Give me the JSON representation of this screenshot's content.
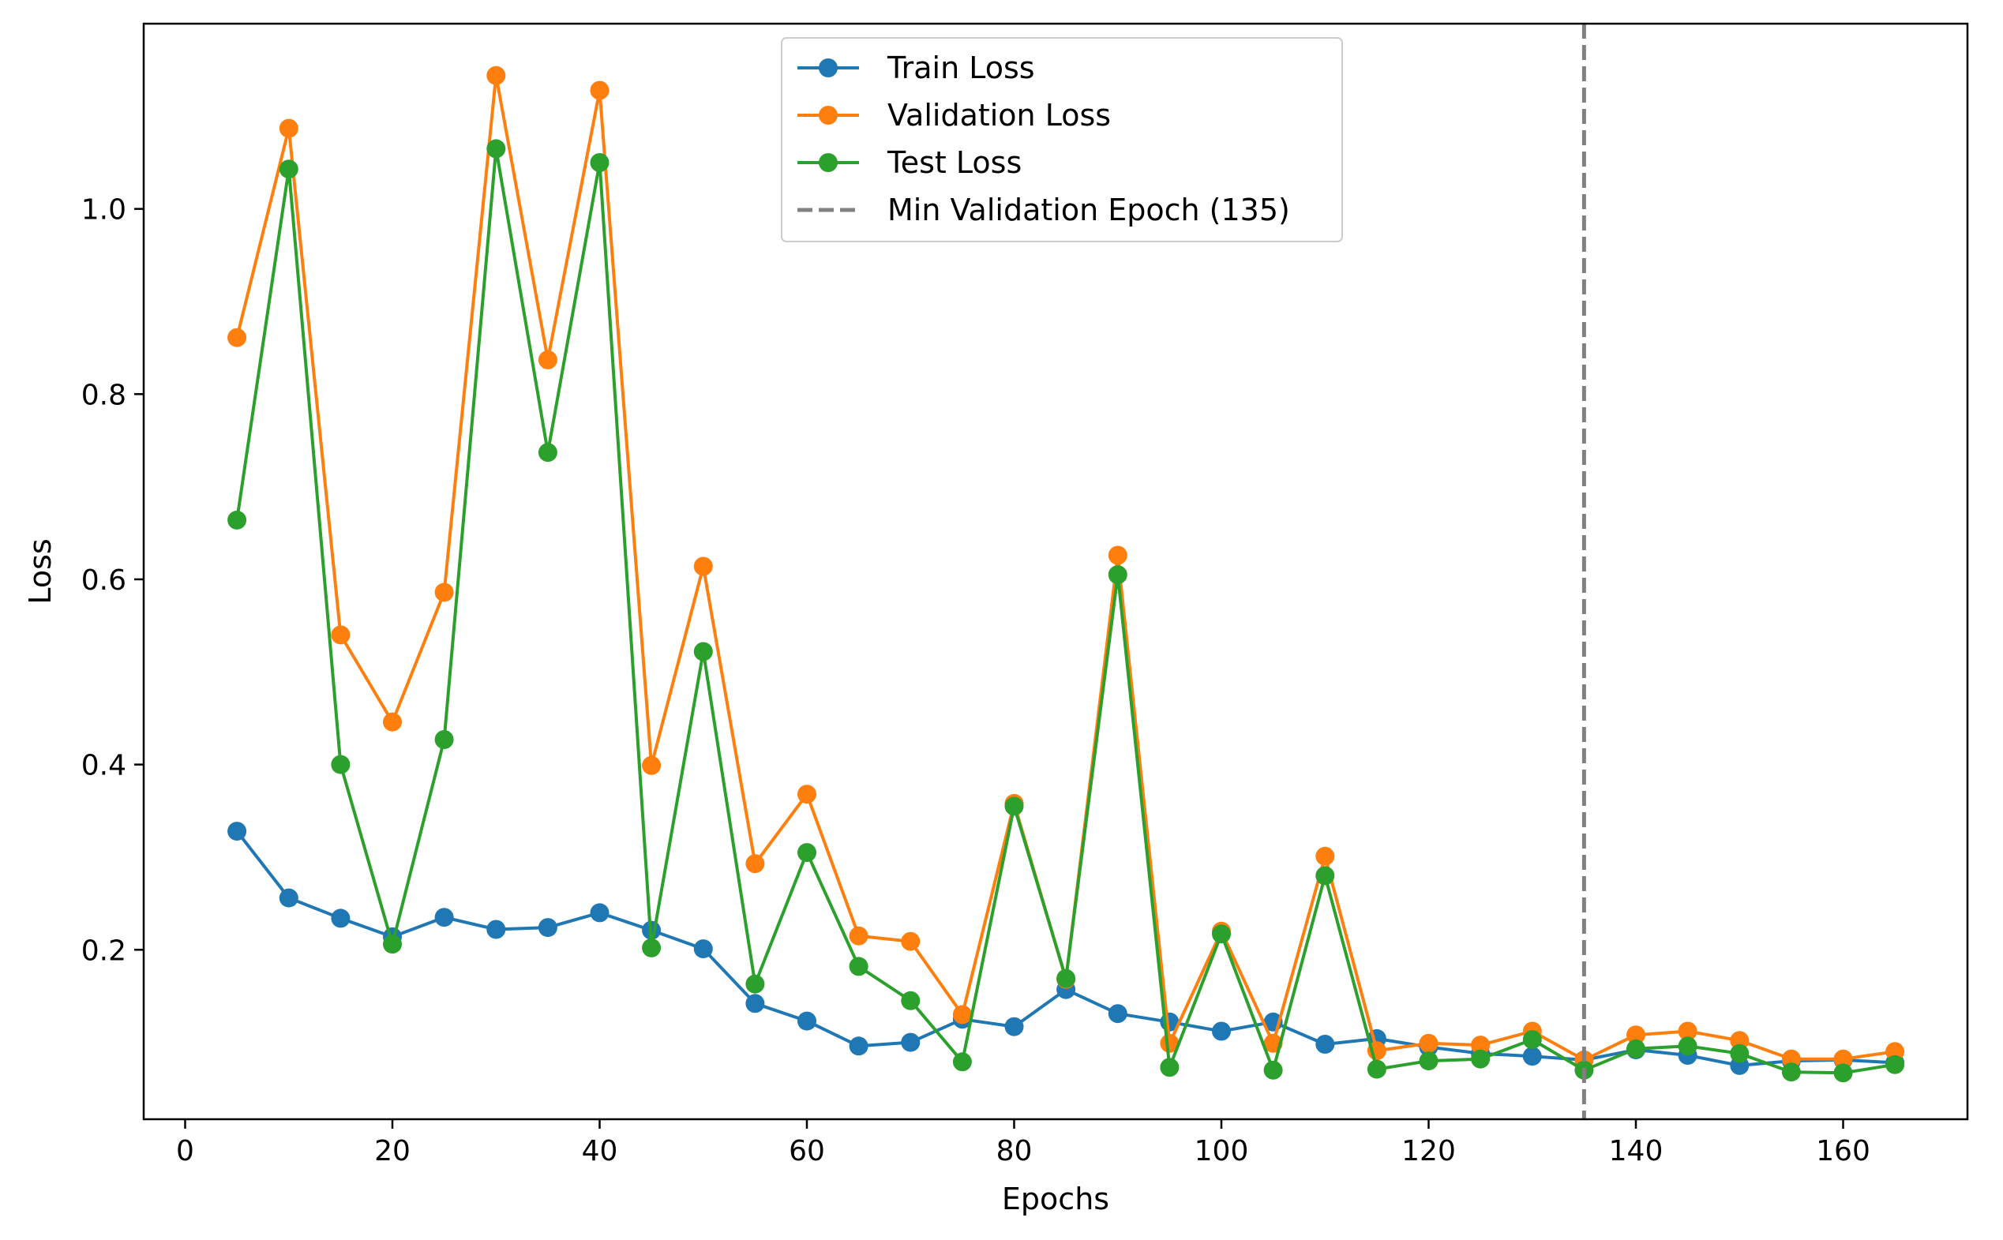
{
  "chart_data": {
    "type": "line",
    "title": "",
    "xlabel": "Epochs",
    "ylabel": "Loss",
    "xlim": [
      -4,
      172
    ],
    "ylim": [
      0.017,
      1.2
    ],
    "x_ticks": [
      0,
      20,
      40,
      60,
      80,
      100,
      120,
      140,
      160
    ],
    "y_ticks": [
      0.2,
      0.4,
      0.6,
      0.8,
      1.0
    ],
    "y_tick_labels": [
      "0.2",
      "0.4",
      "0.6",
      "0.8",
      "1.0"
    ],
    "grid": false,
    "legend_position": "top-center",
    "x": [
      5,
      10,
      15,
      20,
      25,
      30,
      35,
      40,
      45,
      50,
      55,
      60,
      65,
      70,
      75,
      80,
      85,
      90,
      95,
      100,
      105,
      110,
      115,
      120,
      125,
      130,
      135,
      140,
      145,
      150,
      155,
      160,
      165
    ],
    "series": [
      {
        "name": "Train Loss",
        "color": "#1f77b4",
        "values": [
          0.328,
          0.256,
          0.234,
          0.214,
          0.235,
          0.222,
          0.224,
          0.24,
          0.221,
          0.201,
          0.142,
          0.123,
          0.096,
          0.1,
          0.125,
          0.117,
          0.157,
          0.131,
          0.122,
          0.112,
          0.122,
          0.098,
          0.104,
          0.095,
          0.088,
          0.085,
          0.081,
          0.092,
          0.086,
          0.075,
          0.08,
          0.081,
          0.078
        ]
      },
      {
        "name": "Validation Loss",
        "color": "#ff7f0e",
        "values": [
          0.861,
          1.087,
          0.54,
          0.446,
          0.586,
          1.144,
          0.837,
          1.128,
          0.399,
          0.614,
          0.293,
          0.368,
          0.215,
          0.209,
          0.13,
          0.358,
          0.168,
          0.626,
          0.099,
          0.22,
          0.099,
          0.301,
          0.091,
          0.099,
          0.097,
          0.112,
          0.081,
          0.108,
          0.112,
          0.102,
          0.082,
          0.082,
          0.09
        ]
      },
      {
        "name": "Test Loss",
        "color": "#2ca02c",
        "values": [
          0.664,
          1.043,
          0.4,
          0.206,
          0.427,
          1.065,
          0.737,
          1.05,
          0.202,
          0.522,
          0.163,
          0.305,
          0.182,
          0.145,
          0.079,
          0.355,
          0.169,
          0.605,
          0.073,
          0.217,
          0.07,
          0.28,
          0.071,
          0.08,
          0.082,
          0.103,
          0.07,
          0.093,
          0.096,
          0.088,
          0.068,
          0.067,
          0.076
        ]
      }
    ],
    "vline": {
      "x": 135,
      "name": "Min Validation Epoch (135)",
      "color": "#808080",
      "style": "dashed"
    }
  }
}
